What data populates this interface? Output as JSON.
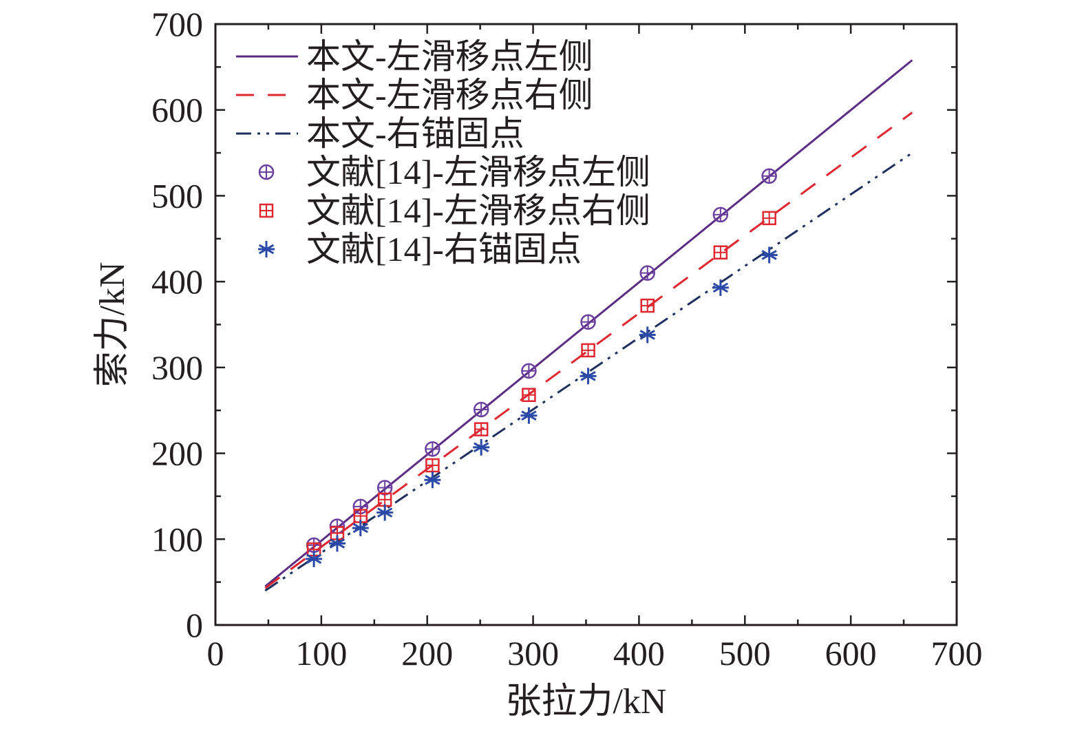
{
  "chart_data": {
    "type": "line",
    "title": "",
    "xlabel": "张拉力/kN",
    "ylabel": "索力/kN",
    "xlim": [
      0,
      700
    ],
    "ylim": [
      0,
      700
    ],
    "xticks": [
      "0",
      "100",
      "200",
      "300",
      "400",
      "500",
      "600",
      "700"
    ],
    "yticks": [
      "0",
      "100",
      "200",
      "300",
      "400",
      "500",
      "600",
      "700"
    ],
    "grid": false,
    "legend_position": "top-left",
    "lines": [
      {
        "name": "本文-左滑移点左侧",
        "style": "solid",
        "color": "#5b2c83",
        "x": [
          47,
          658
        ],
        "y": [
          45,
          658
        ]
      },
      {
        "name": "本文-左滑移点右侧",
        "style": "dashed",
        "color": "#e0262e",
        "x": [
          47,
          658
        ],
        "y": [
          43,
          597
        ]
      },
      {
        "name": "本文-右锚固点",
        "style": "dash-dot-dot",
        "color": "#1f2f5e",
        "x": [
          47,
          658
        ],
        "y": [
          40,
          550
        ]
      }
    ],
    "scatter": [
      {
        "name": "文献[14]-左滑移点左侧",
        "marker": "circle-plus",
        "color": "#6a3fa0",
        "x": [
          93,
          115,
          137,
          160,
          205,
          251,
          296,
          352,
          408,
          477,
          523
        ],
        "y": [
          93,
          115,
          138,
          160,
          205,
          251,
          296,
          353,
          410,
          478,
          523
        ]
      },
      {
        "name": "文献[14]-左滑移点右侧",
        "marker": "square-plus",
        "color": "#e0262e",
        "x": [
          93,
          115,
          137,
          160,
          205,
          251,
          296,
          352,
          408,
          477,
          523
        ],
        "y": [
          88,
          107,
          127,
          146,
          186,
          228,
          268,
          320,
          372,
          434,
          474
        ]
      },
      {
        "name": "文献[14]-右锚固点",
        "marker": "asterisk",
        "color": "#2b4aa8",
        "x": [
          93,
          115,
          137,
          160,
          205,
          251,
          296,
          352,
          408,
          477,
          523
        ],
        "y": [
          77,
          95,
          113,
          131,
          169,
          207,
          244,
          290,
          338,
          393,
          431
        ]
      }
    ]
  }
}
